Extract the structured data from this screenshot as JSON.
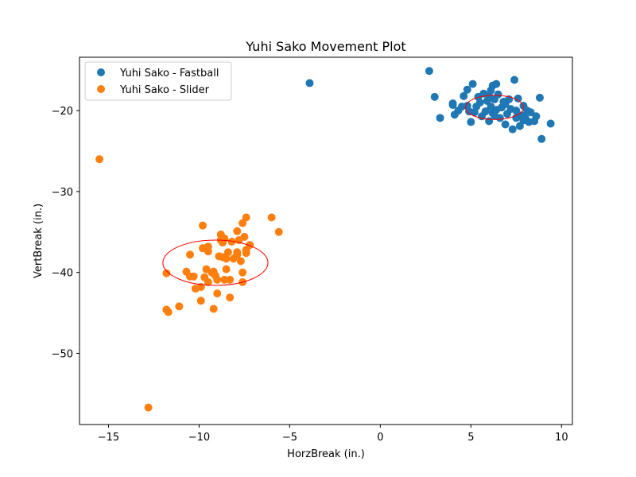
{
  "chart_data": {
    "type": "scatter",
    "title": "Yuhi Sako Movement Plot",
    "xlabel": "HorzBreak (in.)",
    "ylabel": "VertBreak (in.)",
    "xlim": [
      -16.6,
      10.6
    ],
    "ylim": [
      -58.8,
      -13.4
    ],
    "xticks": [
      -15,
      -10,
      -5,
      0,
      5,
      10
    ],
    "yticks": [
      -20,
      -30,
      -40,
      -50
    ],
    "grid": false,
    "legend_position": "upper-left",
    "series": [
      {
        "name": "Yuhi Sako - Fastball",
        "color": "#1f77b4",
        "points": [
          [
            -3.9,
            -16.6
          ],
          [
            2.7,
            -15.1
          ],
          [
            3.0,
            -18.3
          ],
          [
            3.3,
            -20.9
          ],
          [
            4.0,
            -19.1
          ],
          [
            4.1,
            -20.5
          ],
          [
            4.3,
            -20.0
          ],
          [
            4.5,
            -19.5
          ],
          [
            4.6,
            -18.2
          ],
          [
            4.8,
            -17.4
          ],
          [
            4.8,
            -19.4
          ],
          [
            4.9,
            -20.1
          ],
          [
            5.0,
            -21.4
          ],
          [
            5.1,
            -16.7
          ],
          [
            5.3,
            -19.5
          ],
          [
            5.4,
            -18.3
          ],
          [
            5.5,
            -19.0
          ],
          [
            5.6,
            -20.7
          ],
          [
            5.7,
            -17.9
          ],
          [
            5.8,
            -20.1
          ],
          [
            5.9,
            -18.8
          ],
          [
            6.0,
            -21.3
          ],
          [
            6.1,
            -17.5
          ],
          [
            6.1,
            -19.5
          ],
          [
            6.2,
            -16.9
          ],
          [
            6.2,
            -20.3
          ],
          [
            6.3,
            -18.6
          ],
          [
            6.4,
            -16.7
          ],
          [
            6.4,
            -19.9
          ],
          [
            6.5,
            -18.0
          ],
          [
            6.6,
            -20.9
          ],
          [
            6.7,
            -19.6
          ],
          [
            6.8,
            -18.9
          ],
          [
            6.9,
            -21.7
          ],
          [
            7.0,
            -20.4
          ],
          [
            7.1,
            -18.6
          ],
          [
            7.2,
            -19.8
          ],
          [
            7.3,
            -22.3
          ],
          [
            7.4,
            -16.2
          ],
          [
            7.5,
            -20.0
          ],
          [
            7.6,
            -18.5
          ],
          [
            7.7,
            -21.9
          ],
          [
            7.8,
            -20.6
          ],
          [
            7.9,
            -19.4
          ],
          [
            8.0,
            -20.9
          ],
          [
            8.1,
            -20.0
          ],
          [
            8.2,
            -21.4
          ],
          [
            8.3,
            -20.2
          ],
          [
            8.5,
            -21.3
          ],
          [
            8.6,
            -20.7
          ],
          [
            8.8,
            -18.4
          ],
          [
            8.9,
            -23.5
          ],
          [
            9.4,
            -21.6
          ],
          [
            4.0,
            -19.3
          ],
          [
            6.3,
            -20.6
          ],
          [
            7.9,
            -21.2
          ],
          [
            6.9,
            -19.2
          ],
          [
            5.2,
            -20.2
          ],
          [
            7.5,
            -20.9
          ],
          [
            6.0,
            -18.2
          ]
        ],
        "ellipse": {
          "cx": 6.3,
          "cy": -19.6,
          "rx": 1.6,
          "ry": 1.5
        }
      },
      {
        "name": "Yuhi Sako - Slider",
        "color": "#ff7f0e",
        "points": [
          [
            -15.5,
            -26.0
          ],
          [
            -12.8,
            -56.7
          ],
          [
            -11.8,
            -40.1
          ],
          [
            -11.8,
            -44.6
          ],
          [
            -11.7,
            -44.9
          ],
          [
            -11.1,
            -44.2
          ],
          [
            -10.7,
            -39.9
          ],
          [
            -10.5,
            -37.8
          ],
          [
            -10.3,
            -40.5
          ],
          [
            -10.2,
            -42.0
          ],
          [
            -9.9,
            -41.8
          ],
          [
            -9.9,
            -43.5
          ],
          [
            -9.8,
            -37.0
          ],
          [
            -9.8,
            -34.2
          ],
          [
            -9.7,
            -40.6
          ],
          [
            -9.6,
            -39.6
          ],
          [
            -9.5,
            -37.4
          ],
          [
            -9.5,
            -41.2
          ],
          [
            -9.3,
            -40.0
          ],
          [
            -9.2,
            -44.5
          ],
          [
            -9.1,
            -40.4
          ],
          [
            -9.0,
            -42.6
          ],
          [
            -9.0,
            -40.9
          ],
          [
            -8.9,
            -38.0
          ],
          [
            -8.8,
            -35.3
          ],
          [
            -8.7,
            -36.3
          ],
          [
            -8.7,
            -38.1
          ],
          [
            -8.6,
            -35.8
          ],
          [
            -8.6,
            -40.9
          ],
          [
            -8.5,
            -39.6
          ],
          [
            -8.4,
            -37.5
          ],
          [
            -8.3,
            -40.9
          ],
          [
            -8.3,
            -43.1
          ],
          [
            -8.2,
            -36.2
          ],
          [
            -8.1,
            -38.3
          ],
          [
            -7.9,
            -34.9
          ],
          [
            -7.9,
            -37.5
          ],
          [
            -7.8,
            -36.0
          ],
          [
            -7.7,
            -38.6
          ],
          [
            -7.6,
            -33.9
          ],
          [
            -7.6,
            -40.0
          ],
          [
            -7.6,
            -41.2
          ],
          [
            -7.5,
            -35.6
          ],
          [
            -7.4,
            -37.2
          ],
          [
            -7.4,
            -33.2
          ],
          [
            -7.4,
            -37.6
          ],
          [
            -7.2,
            -36.6
          ],
          [
            -6.0,
            -33.2
          ],
          [
            -5.6,
            -35.0
          ],
          [
            -10.5,
            -40.5
          ],
          [
            -9.2,
            -39.9
          ],
          [
            -8.5,
            -38.3
          ],
          [
            -9.5,
            -36.8
          ],
          [
            -7.9,
            -37.8
          ],
          [
            -8.8,
            -36.0
          ]
        ],
        "ellipse": {
          "cx": -9.1,
          "cy": -38.8,
          "rx": 2.9,
          "ry": 2.8
        }
      }
    ]
  }
}
